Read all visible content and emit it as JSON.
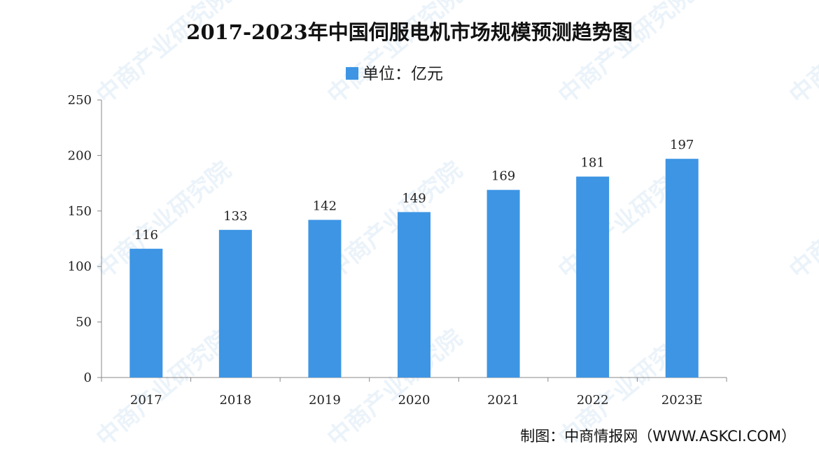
{
  "chart_data": {
    "type": "bar",
    "title": "2017-2023年中国伺服电机市场规模预测趋势图",
    "legend": {
      "label": "单位：亿元",
      "position": "top-center"
    },
    "categories": [
      "2017",
      "2018",
      "2019",
      "2020",
      "2021",
      "2022",
      "2023E"
    ],
    "values": [
      116,
      133,
      142,
      149,
      169,
      181,
      197
    ],
    "data_labels": [
      "116",
      "133",
      "142",
      "149",
      "169",
      "181",
      "197"
    ],
    "ylim": [
      0,
      250
    ],
    "y_ticks": [
      "0",
      "50",
      "100",
      "150",
      "200",
      "250"
    ],
    "y_tick_values": [
      0,
      50,
      100,
      150,
      200,
      250
    ],
    "xlabel": "",
    "ylabel": "",
    "grid": false,
    "colors": {
      "bar": "#3d95e4",
      "axis": "#888888",
      "text": "#222222"
    }
  },
  "source": "制图：中商情报网（WWW.ASKCI.COM）",
  "watermark": {
    "text": "中商产业研究院"
  }
}
